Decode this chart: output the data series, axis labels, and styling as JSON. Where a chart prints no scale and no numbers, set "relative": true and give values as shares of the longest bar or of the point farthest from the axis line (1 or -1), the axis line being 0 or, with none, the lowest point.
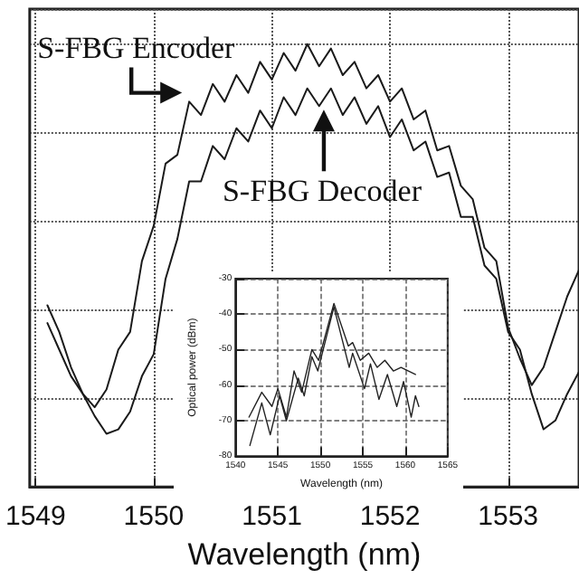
{
  "chart_data": [
    {
      "type": "line",
      "relative": true,
      "xlabel": "Wavelength (nm)",
      "xlim": [
        1548.95,
        1553.6
      ],
      "xticks": [
        1549,
        1550,
        1551,
        1552,
        1553
      ],
      "tick_labels": "x",
      "grid": true,
      "marker": "none",
      "line_style": "solid",
      "x": [
        1549.1,
        1549.2,
        1549.3,
        1549.4,
        1549.5,
        1549.6,
        1549.7,
        1549.8,
        1549.9,
        1550.0,
        1550.1,
        1550.2,
        1550.3,
        1550.4,
        1550.5,
        1550.6,
        1550.7,
        1550.8,
        1550.9,
        1551.0,
        1551.1,
        1551.2,
        1551.3,
        1551.4,
        1551.5,
        1551.6,
        1551.7,
        1551.8,
        1551.9,
        1552.0,
        1552.1,
        1552.2,
        1552.3,
        1552.4,
        1552.5,
        1552.6,
        1552.7,
        1552.8,
        1552.9,
        1553.0,
        1553.1,
        1553.2,
        1553.3,
        1553.4,
        1553.5,
        1553.6
      ],
      "series": [
        {
          "color": "#1a1a1a",
          "values": [
            0.37,
            0.31,
            0.25,
            0.21,
            0.18,
            0.22,
            0.31,
            0.35,
            0.51,
            0.59,
            0.73,
            0.75,
            0.87,
            0.84,
            0.91,
            0.87,
            0.93,
            0.89,
            0.96,
            0.92,
            0.98,
            0.94,
            1.0,
            0.95,
            0.99,
            0.93,
            0.96,
            0.9,
            0.93,
            0.87,
            0.9,
            0.83,
            0.85,
            0.76,
            0.77,
            0.68,
            0.65,
            0.54,
            0.51,
            0.36,
            0.29,
            0.23,
            0.27,
            0.35,
            0.43,
            0.49
          ]
        },
        {
          "color": "#1a1a1a",
          "values": [
            0.41,
            0.35,
            0.27,
            0.21,
            0.16,
            0.12,
            0.13,
            0.17,
            0.25,
            0.3,
            0.47,
            0.56,
            0.69,
            0.69,
            0.77,
            0.74,
            0.81,
            0.78,
            0.85,
            0.81,
            0.88,
            0.84,
            0.9,
            0.86,
            0.9,
            0.84,
            0.88,
            0.82,
            0.86,
            0.79,
            0.83,
            0.76,
            0.78,
            0.7,
            0.71,
            0.61,
            0.61,
            0.5,
            0.47,
            0.35,
            0.31,
            0.21,
            0.13,
            0.15,
            0.21,
            0.26
          ]
        }
      ],
      "annotations": [
        {
          "text": "S-FBG Encoder",
          "x": 1550.27,
          "y": 0.89
        },
        {
          "text": "S-FBG Decoder",
          "x": 1551.44,
          "y": 0.86
        }
      ]
    },
    {
      "type": "line",
      "xlabel": "Wavelength (nm)",
      "ylabel": "Optical power (dBm)",
      "xlim": [
        1540,
        1565
      ],
      "xticks": [
        1540,
        1545,
        1550,
        1555,
        1560,
        1565
      ],
      "ylim": [
        -80,
        -30
      ],
      "yticks": [
        -80,
        -70,
        -60,
        -50,
        -40,
        -30
      ],
      "grid": true,
      "marker": "none",
      "line_style": "solid",
      "series": [
        {
          "color": "#222222",
          "x": [
            1541.6,
            1543.1,
            1544.3,
            1545.0,
            1546.0,
            1546.9,
            1547.8,
            1549.0,
            1549.8,
            1551.6,
            1553.3,
            1553.8,
            1554.7,
            1555.7,
            1556.7,
            1557.6,
            1558.6,
            1559.5,
            1561.2
          ],
          "values": [
            -69,
            -62,
            -66,
            -61,
            -69,
            -56,
            -62,
            -50,
            -53,
            -37,
            -49,
            -48,
            -53,
            -51,
            -55,
            -53,
            -56,
            -55,
            -57
          ]
        },
        {
          "color": "#222222",
          "x": [
            1541.7,
            1543.1,
            1544.1,
            1545.2,
            1546.0,
            1547.4,
            1548.1,
            1549.0,
            1549.7,
            1551.6,
            1553.4,
            1553.8,
            1555.2,
            1555.9,
            1556.9,
            1557.9,
            1559.0,
            1559.8,
            1560.7,
            1561.2,
            1561.6
          ],
          "values": [
            -77,
            -65,
            -74,
            -63,
            -70,
            -58,
            -63,
            -52,
            -56,
            -38,
            -55,
            -51,
            -61,
            -54,
            -64,
            -57,
            -66,
            -59,
            -69,
            -63,
            -66
          ]
        }
      ]
    }
  ]
}
